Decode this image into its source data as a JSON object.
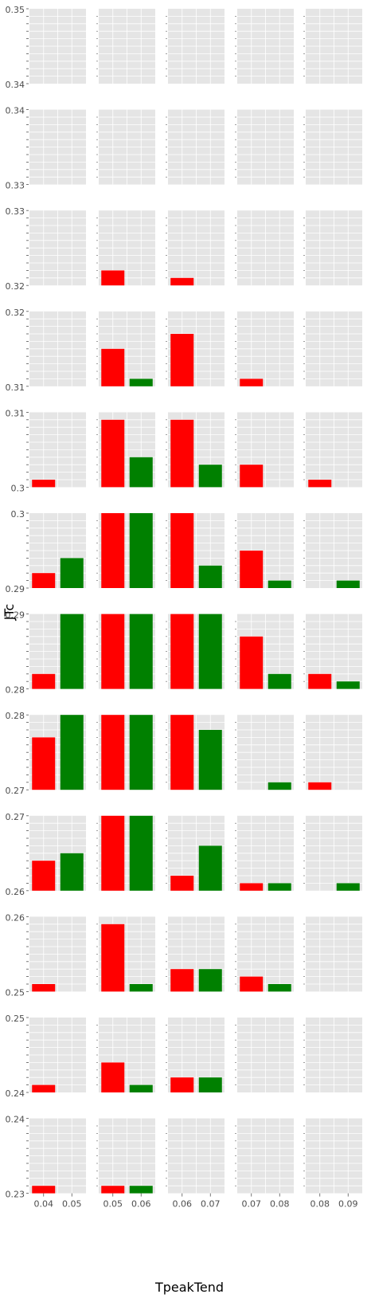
{
  "chart_data": {
    "type": "bar",
    "layout": "facet grid, 12 rows by 5 columns, y ranges descending down the rows",
    "title": "",
    "xlabel": "TpeakTend",
    "ylabel": "JTc",
    "grid": true,
    "background": "#e5e5e5",
    "series_colors": [
      "#ff0000",
      "#008000"
    ],
    "columns": [
      {
        "ticks": [
          "0.04",
          "0.05"
        ]
      },
      {
        "ticks": [
          "0.05",
          "0.06"
        ]
      },
      {
        "ticks": [
          "0.06",
          "0.07"
        ]
      },
      {
        "ticks": [
          "0.07",
          "0.08"
        ]
      },
      {
        "ticks": [
          "0.08",
          "0.09"
        ]
      }
    ],
    "rows": [
      {
        "ylim": [
          0.34,
          0.35
        ],
        "ytick_labels": [
          "0.35",
          "0.34"
        ],
        "values": [
          [
            0,
            0
          ],
          [
            0,
            0
          ],
          [
            0,
            0
          ],
          [
            0,
            0
          ],
          [
            0,
            0
          ]
        ]
      },
      {
        "ylim": [
          0.33,
          0.34
        ],
        "ytick_labels": [
          "0.34",
          "0.33"
        ],
        "values": [
          [
            0,
            0
          ],
          [
            0,
            0
          ],
          [
            0,
            0
          ],
          [
            0,
            0
          ],
          [
            0,
            0
          ]
        ]
      },
      {
        "ylim": [
          0.32,
          0.33
        ],
        "ytick_labels": [
          "0.33",
          "0.32"
        ],
        "values": [
          [
            0,
            0
          ],
          [
            2,
            0
          ],
          [
            1,
            0
          ],
          [
            0,
            0
          ],
          [
            0,
            0
          ]
        ]
      },
      {
        "ylim": [
          0.31,
          0.32
        ],
        "ytick_labels": [
          "0.32",
          "0.31"
        ],
        "values": [
          [
            0,
            0
          ],
          [
            5,
            1
          ],
          [
            7,
            0
          ],
          [
            1,
            0
          ],
          [
            0,
            0
          ]
        ]
      },
      {
        "ylim": [
          0.3,
          0.31
        ],
        "ytick_labels": [
          "0.31",
          "0.3"
        ],
        "values": [
          [
            1,
            0
          ],
          [
            9,
            4
          ],
          [
            9,
            3
          ],
          [
            3,
            0
          ],
          [
            1,
            0
          ]
        ]
      },
      {
        "ylim": [
          0.29,
          0.3
        ],
        "ytick_labels": [
          "0.3",
          "0.29"
        ],
        "values": [
          [
            2,
            4
          ],
          [
            10,
            10
          ],
          [
            10,
            3
          ],
          [
            5,
            1
          ],
          [
            0,
            1
          ]
        ]
      },
      {
        "ylim": [
          0.28,
          0.29
        ],
        "ytick_labels": [
          "0.29",
          "0.28"
        ],
        "values": [
          [
            2,
            10
          ],
          [
            10,
            10
          ],
          [
            10,
            10
          ],
          [
            7,
            2
          ],
          [
            2,
            1
          ]
        ]
      },
      {
        "ylim": [
          0.27,
          0.28
        ],
        "ytick_labels": [
          "0.28",
          "0.27"
        ],
        "values": [
          [
            7,
            10
          ],
          [
            10,
            10
          ],
          [
            10,
            8
          ],
          [
            0,
            1
          ],
          [
            1,
            0
          ]
        ]
      },
      {
        "ylim": [
          0.26,
          0.27
        ],
        "ytick_labels": [
          "0.27",
          "0.26"
        ],
        "values": [
          [
            4,
            5
          ],
          [
            10,
            10
          ],
          [
            2,
            6
          ],
          [
            1,
            1
          ],
          [
            0,
            1
          ]
        ]
      },
      {
        "ylim": [
          0.25,
          0.26
        ],
        "ytick_labels": [
          "0.26",
          "0.25"
        ],
        "values": [
          [
            1,
            0
          ],
          [
            9,
            1
          ],
          [
            3,
            3
          ],
          [
            2,
            1
          ],
          [
            0,
            0
          ]
        ]
      },
      {
        "ylim": [
          0.24,
          0.25
        ],
        "ytick_labels": [
          "0.25",
          "0.24"
        ],
        "values": [
          [
            1,
            0
          ],
          [
            4,
            1
          ],
          [
            2,
            2
          ],
          [
            0,
            0
          ],
          [
            0,
            0
          ]
        ]
      },
      {
        "ylim": [
          0.23,
          0.24
        ],
        "ytick_labels": [
          "0.24",
          "0.23"
        ],
        "values": [
          [
            1,
            0
          ],
          [
            1,
            1
          ],
          [
            0,
            0
          ],
          [
            0,
            0
          ],
          [
            0,
            0
          ]
        ]
      }
    ]
  }
}
